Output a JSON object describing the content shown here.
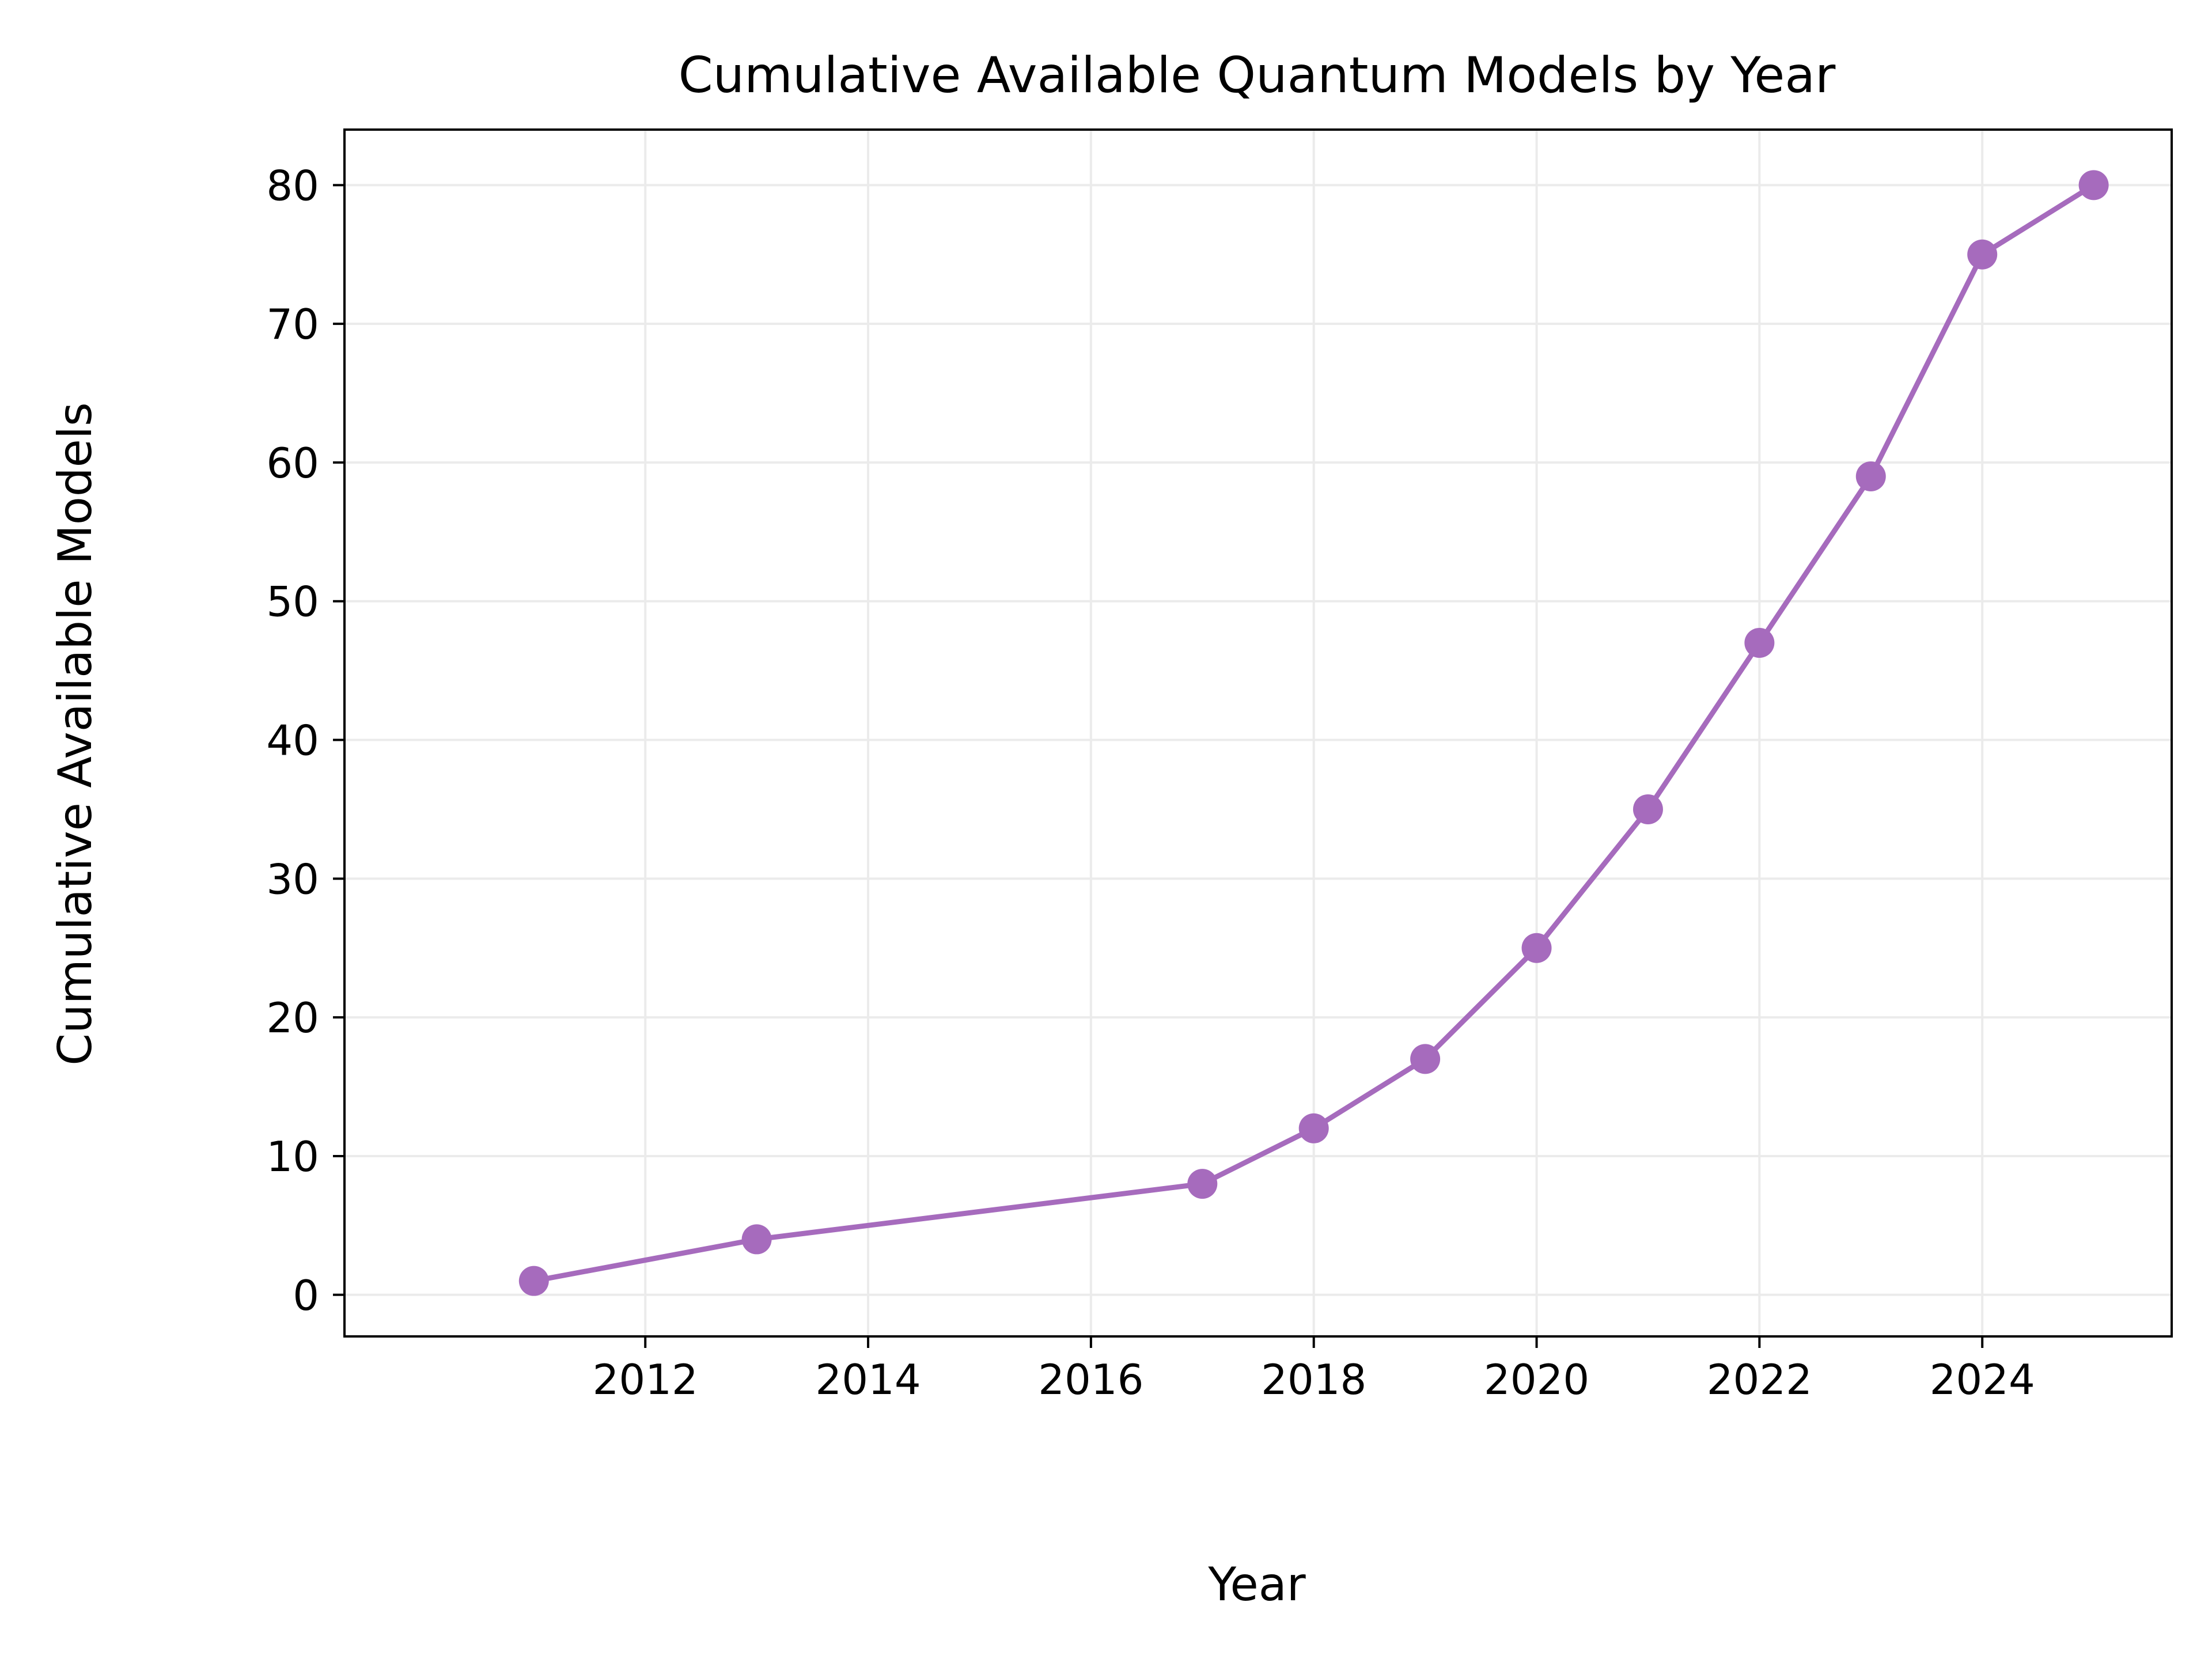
{
  "chart_data": {
    "type": "line",
    "title": "Cumulative Available Quantum Models by Year",
    "xlabel": "Year",
    "ylabel": "Cumulative Available Models",
    "x": [
      2011,
      2013,
      2017,
      2018,
      2019,
      2020,
      2021,
      2022,
      2023,
      2024,
      2025
    ],
    "series": [
      {
        "values": [
          1,
          4,
          8,
          12,
          17,
          25,
          35,
          47,
          59,
          75,
          80
        ],
        "color": "#a66bbd",
        "marker": "circle"
      }
    ],
    "xlim": [
      2009.3,
      2025.7
    ],
    "ylim": [
      -3,
      84
    ],
    "xticks": [
      2012,
      2014,
      2016,
      2018,
      2020,
      2022,
      2024
    ],
    "yticks": [
      0,
      10,
      20,
      30,
      40,
      50,
      60,
      70,
      80
    ],
    "grid": true,
    "legend": "none"
  }
}
